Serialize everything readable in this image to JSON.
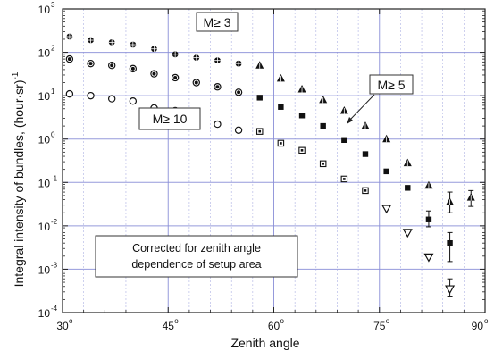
{
  "chart_data": {
    "type": "scatter",
    "xlabel": "Zenith angle",
    "ylabel_base": "Integral intensity of bundles, (hour·sr)",
    "ylabel_exp": "-1",
    "xlim": [
      30,
      90
    ],
    "ylim_log10": [
      -4,
      3
    ],
    "y_scale": "log",
    "grid": true,
    "grid_color": "#8a8fd8",
    "x_ticks": [
      {
        "value": 30,
        "label": "30",
        "sup": "o"
      },
      {
        "value": 45,
        "label": "45",
        "sup": "o"
      },
      {
        "value": 60,
        "label": "60",
        "sup": "o"
      },
      {
        "value": 75,
        "label": "75",
        "sup": "o"
      },
      {
        "value": 90,
        "label": "90",
        "sup": "o"
      }
    ],
    "y_ticks": [
      {
        "value": 3,
        "label": "10",
        "sup": "3"
      },
      {
        "value": 2,
        "label": "10",
        "sup": "2"
      },
      {
        "value": 1,
        "label": "10",
        "sup": "1"
      },
      {
        "value": 0,
        "label": "10",
        "sup": "0"
      },
      {
        "value": -1,
        "label": "10",
        "sup": "-1"
      },
      {
        "value": -2,
        "label": "10",
        "sup": "-2"
      },
      {
        "value": -3,
        "label": "10",
        "sup": "-3"
      },
      {
        "value": -4,
        "label": "10",
        "sup": "-4"
      }
    ],
    "annotations": {
      "m3": "M≥ 3",
      "m5": "M≥ 5",
      "m10": "M≥ 10",
      "note_line1": "Corrected for zenith angle",
      "note_line2": "dependence of setup area"
    },
    "series": [
      {
        "marker": "crossed-circle",
        "points": [
          {
            "x": 31,
            "y": 230
          },
          {
            "x": 34,
            "y": 190
          },
          {
            "x": 37,
            "y": 170
          },
          {
            "x": 40,
            "y": 150
          },
          {
            "x": 43,
            "y": 120
          },
          {
            "x": 46,
            "y": 90
          },
          {
            "x": 49,
            "y": 75
          },
          {
            "x": 52,
            "y": 65
          },
          {
            "x": 55,
            "y": 55
          }
        ]
      },
      {
        "marker": "crossed-triangle",
        "points": [
          {
            "x": 58,
            "y": 50
          },
          {
            "x": 61,
            "y": 25
          },
          {
            "x": 64,
            "y": 14
          },
          {
            "x": 67,
            "y": 8
          },
          {
            "x": 70,
            "y": 4.5
          },
          {
            "x": 73,
            "y": 2
          },
          {
            "x": 76,
            "y": 1
          },
          {
            "x": 79,
            "y": 0.28
          },
          {
            "x": 82,
            "y": 0.085
          },
          {
            "x": 85,
            "y": 0.035,
            "err": [
              0.02,
              0.06
            ]
          },
          {
            "x": 88,
            "y": 0.045,
            "err": [
              0.028,
              0.065
            ]
          }
        ]
      },
      {
        "marker": "circled-dot",
        "points": [
          {
            "x": 31,
            "y": 70
          },
          {
            "x": 34,
            "y": 55
          },
          {
            "x": 37,
            "y": 50
          },
          {
            "x": 40,
            "y": 42
          },
          {
            "x": 43,
            "y": 32
          },
          {
            "x": 46,
            "y": 26
          },
          {
            "x": 49,
            "y": 20
          },
          {
            "x": 52,
            "y": 16
          },
          {
            "x": 55,
            "y": 12
          }
        ]
      },
      {
        "marker": "filled-square",
        "points": [
          {
            "x": 58,
            "y": 9
          },
          {
            "x": 61,
            "y": 5.5
          },
          {
            "x": 64,
            "y": 3.5
          },
          {
            "x": 67,
            "y": 2
          },
          {
            "x": 70,
            "y": 0.95
          },
          {
            "x": 73,
            "y": 0.45
          },
          {
            "x": 76,
            "y": 0.18
          },
          {
            "x": 79,
            "y": 0.075
          },
          {
            "x": 82,
            "y": 0.014,
            "err": [
              0.0095,
              0.022
            ]
          },
          {
            "x": 85,
            "y": 0.004,
            "err": [
              0.0015,
              0.007
            ]
          }
        ]
      },
      {
        "marker": "open-circle",
        "points": [
          {
            "x": 31,
            "y": 11
          },
          {
            "x": 34,
            "y": 10
          },
          {
            "x": 37,
            "y": 8.5
          },
          {
            "x": 40,
            "y": 7.5
          },
          {
            "x": 43,
            "y": 5.2
          },
          {
            "x": 46,
            "y": 4.5
          },
          {
            "x": 49,
            "y": 4
          },
          {
            "x": 52,
            "y": 2.2
          },
          {
            "x": 55,
            "y": 1.6
          }
        ]
      },
      {
        "marker": "dotted-square",
        "points": [
          {
            "x": 58,
            "y": 1.5
          },
          {
            "x": 61,
            "y": 0.8
          },
          {
            "x": 64,
            "y": 0.55
          },
          {
            "x": 67,
            "y": 0.27
          },
          {
            "x": 70,
            "y": 0.12
          },
          {
            "x": 73,
            "y": 0.065
          }
        ]
      },
      {
        "marker": "open-down-triangle",
        "points": [
          {
            "x": 76,
            "y": 0.025
          },
          {
            "x": 79,
            "y": 0.007
          },
          {
            "x": 82,
            "y": 0.0019
          },
          {
            "x": 85,
            "y": 0.00035,
            "err": [
              0.00023,
              0.0006
            ]
          }
        ]
      }
    ]
  }
}
